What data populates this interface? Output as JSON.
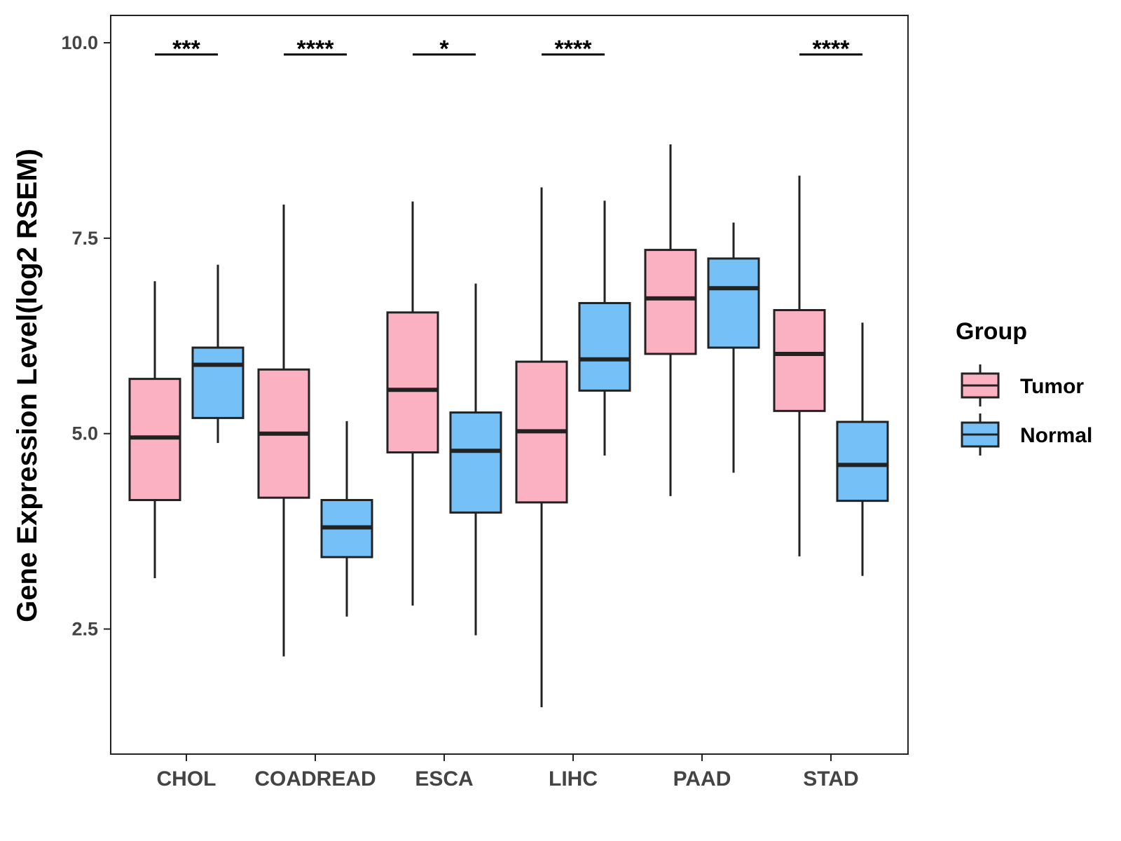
{
  "chart_data": {
    "type": "boxplot",
    "title": "",
    "xlabel": "",
    "ylabel": "Gene Expression Level(log2 RSEM)",
    "ylim": [
      0.9,
      10.35
    ],
    "yticks": [
      2.5,
      5.0,
      7.5,
      10.0
    ],
    "ytick_labels": [
      "2.5",
      "5.0",
      "7.5",
      "10.0"
    ],
    "grid": false,
    "categories": [
      "CHOL",
      "COADREAD",
      "ESCA",
      "LIHC",
      "PAAD",
      "STAD"
    ],
    "series": [
      {
        "name": "Tumor",
        "color": "#FCB1C3",
        "boxes": [
          {
            "whisker_low": 3.15,
            "q1": 4.15,
            "median": 4.95,
            "q3": 5.7,
            "whisker_high": 6.95
          },
          {
            "whisker_low": 2.15,
            "q1": 4.18,
            "median": 5.0,
            "q3": 5.82,
            "whisker_high": 7.93
          },
          {
            "whisker_low": 2.8,
            "q1": 4.76,
            "median": 5.56,
            "q3": 6.55,
            "whisker_high": 7.97
          },
          {
            "whisker_low": 1.5,
            "q1": 4.12,
            "median": 5.03,
            "q3": 5.92,
            "whisker_high": 8.15
          },
          {
            "whisker_low": 4.2,
            "q1": 6.02,
            "median": 6.73,
            "q3": 7.35,
            "whisker_high": 8.7
          },
          {
            "whisker_low": 3.43,
            "q1": 5.29,
            "median": 6.02,
            "q3": 6.58,
            "whisker_high": 8.3
          }
        ]
      },
      {
        "name": "Normal",
        "color": "#75C1F7",
        "boxes": [
          {
            "whisker_low": 4.88,
            "q1": 5.2,
            "median": 5.88,
            "q3": 6.1,
            "whisker_high": 7.16
          },
          {
            "whisker_low": 2.66,
            "q1": 3.42,
            "median": 3.8,
            "q3": 4.15,
            "whisker_high": 5.16
          },
          {
            "whisker_low": 2.42,
            "q1": 3.99,
            "median": 4.78,
            "q3": 5.27,
            "whisker_high": 6.92
          },
          {
            "whisker_low": 4.72,
            "q1": 5.55,
            "median": 5.95,
            "q3": 6.67,
            "whisker_high": 7.98
          },
          {
            "whisker_low": 4.5,
            "q1": 6.1,
            "median": 6.86,
            "q3": 7.24,
            "whisker_high": 7.7
          },
          {
            "whisker_low": 3.18,
            "q1": 4.14,
            "median": 4.6,
            "q3": 5.15,
            "whisker_high": 6.42
          }
        ]
      }
    ],
    "significance": [
      {
        "category": "CHOL",
        "label": "***",
        "y": 9.85
      },
      {
        "category": "COADREAD",
        "label": "****",
        "y": 9.85
      },
      {
        "category": "ESCA",
        "label": "*",
        "y": 9.85
      },
      {
        "category": "LIHC",
        "label": "****",
        "y": 9.85
      },
      {
        "category": "STAD",
        "label": "****",
        "y": 9.85
      }
    ],
    "legend": {
      "title": "Group",
      "position": "right",
      "entries": [
        "Tumor",
        "Normal"
      ]
    }
  }
}
